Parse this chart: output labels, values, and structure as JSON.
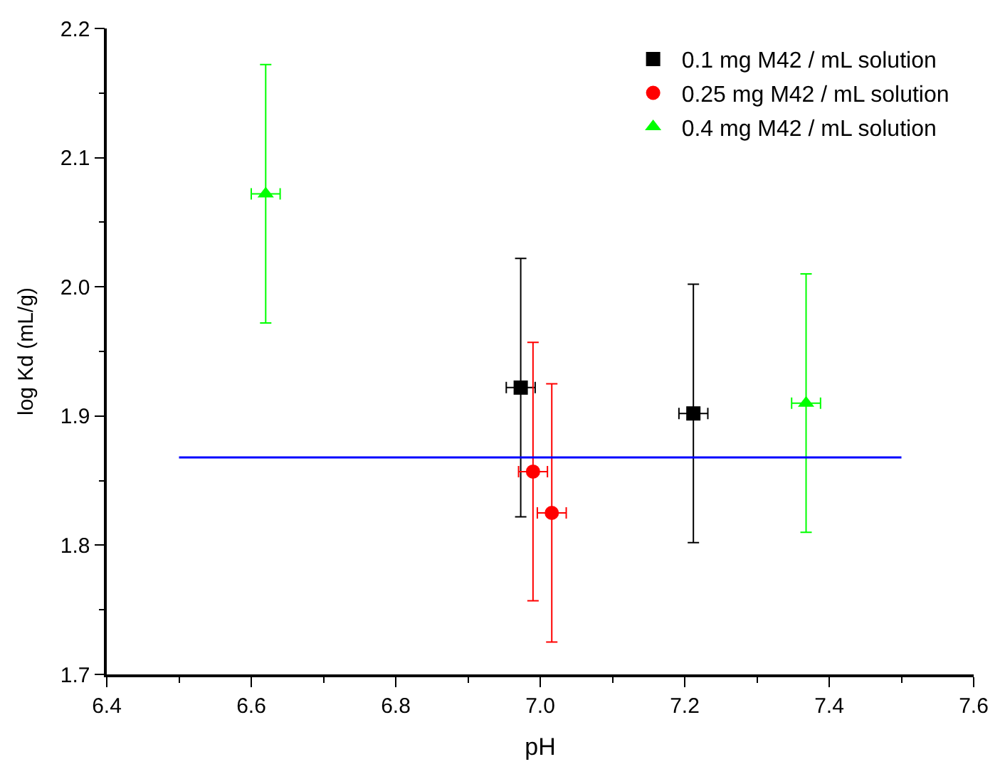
{
  "chart_data": {
    "type": "scatter",
    "xlabel": "pH",
    "ylabel": "log Kd (mL/g)",
    "xlim": [
      6.4,
      7.6
    ],
    "xticks": [
      6.4,
      6.6,
      6.8,
      {
        "value": 7,
        "label": "7.0"
      },
      7.2,
      7.4,
      7.6
    ],
    "ylim": [
      1.7,
      2.2
    ],
    "yticks": [
      1.7,
      1.8,
      1.9,
      {
        "value": 2,
        "label": "2.0"
      },
      2.1,
      2.2
    ],
    "legend": "top right",
    "series": [
      {
        "name": "0.1 mg M42 / mL solution",
        "color": "#000000",
        "marker": "square",
        "x": [
          6.973,
          7.212
        ],
        "values": [
          1.922,
          1.902
        ],
        "errors": [
          0.1,
          0.1
        ],
        "xerrors": [
          0.02,
          0.02
        ]
      },
      {
        "name": "0.25 mg M42 / mL solution",
        "color": "#ff0000",
        "marker": "circle",
        "x": [
          6.99,
          7.016
        ],
        "values": [
          1.857,
          1.825
        ],
        "errors": [
          0.1,
          0.1
        ],
        "xerrors": [
          0.02,
          0.02
        ]
      },
      {
        "name": "0.4 mg M42 / mL solution",
        "color": "#00ff00",
        "marker": "triangle",
        "x": [
          6.62,
          7.368
        ],
        "values": [
          2.072,
          1.91
        ],
        "errors": [
          0.1,
          0.1
        ],
        "xerrors": [
          0.02,
          0.02
        ]
      },
      {
        "type": "line",
        "color": "#0000ff",
        "marker": "none",
        "x": [
          6.5,
          7.5
        ],
        "values": [
          1.868,
          1.868
        ]
      }
    ]
  }
}
